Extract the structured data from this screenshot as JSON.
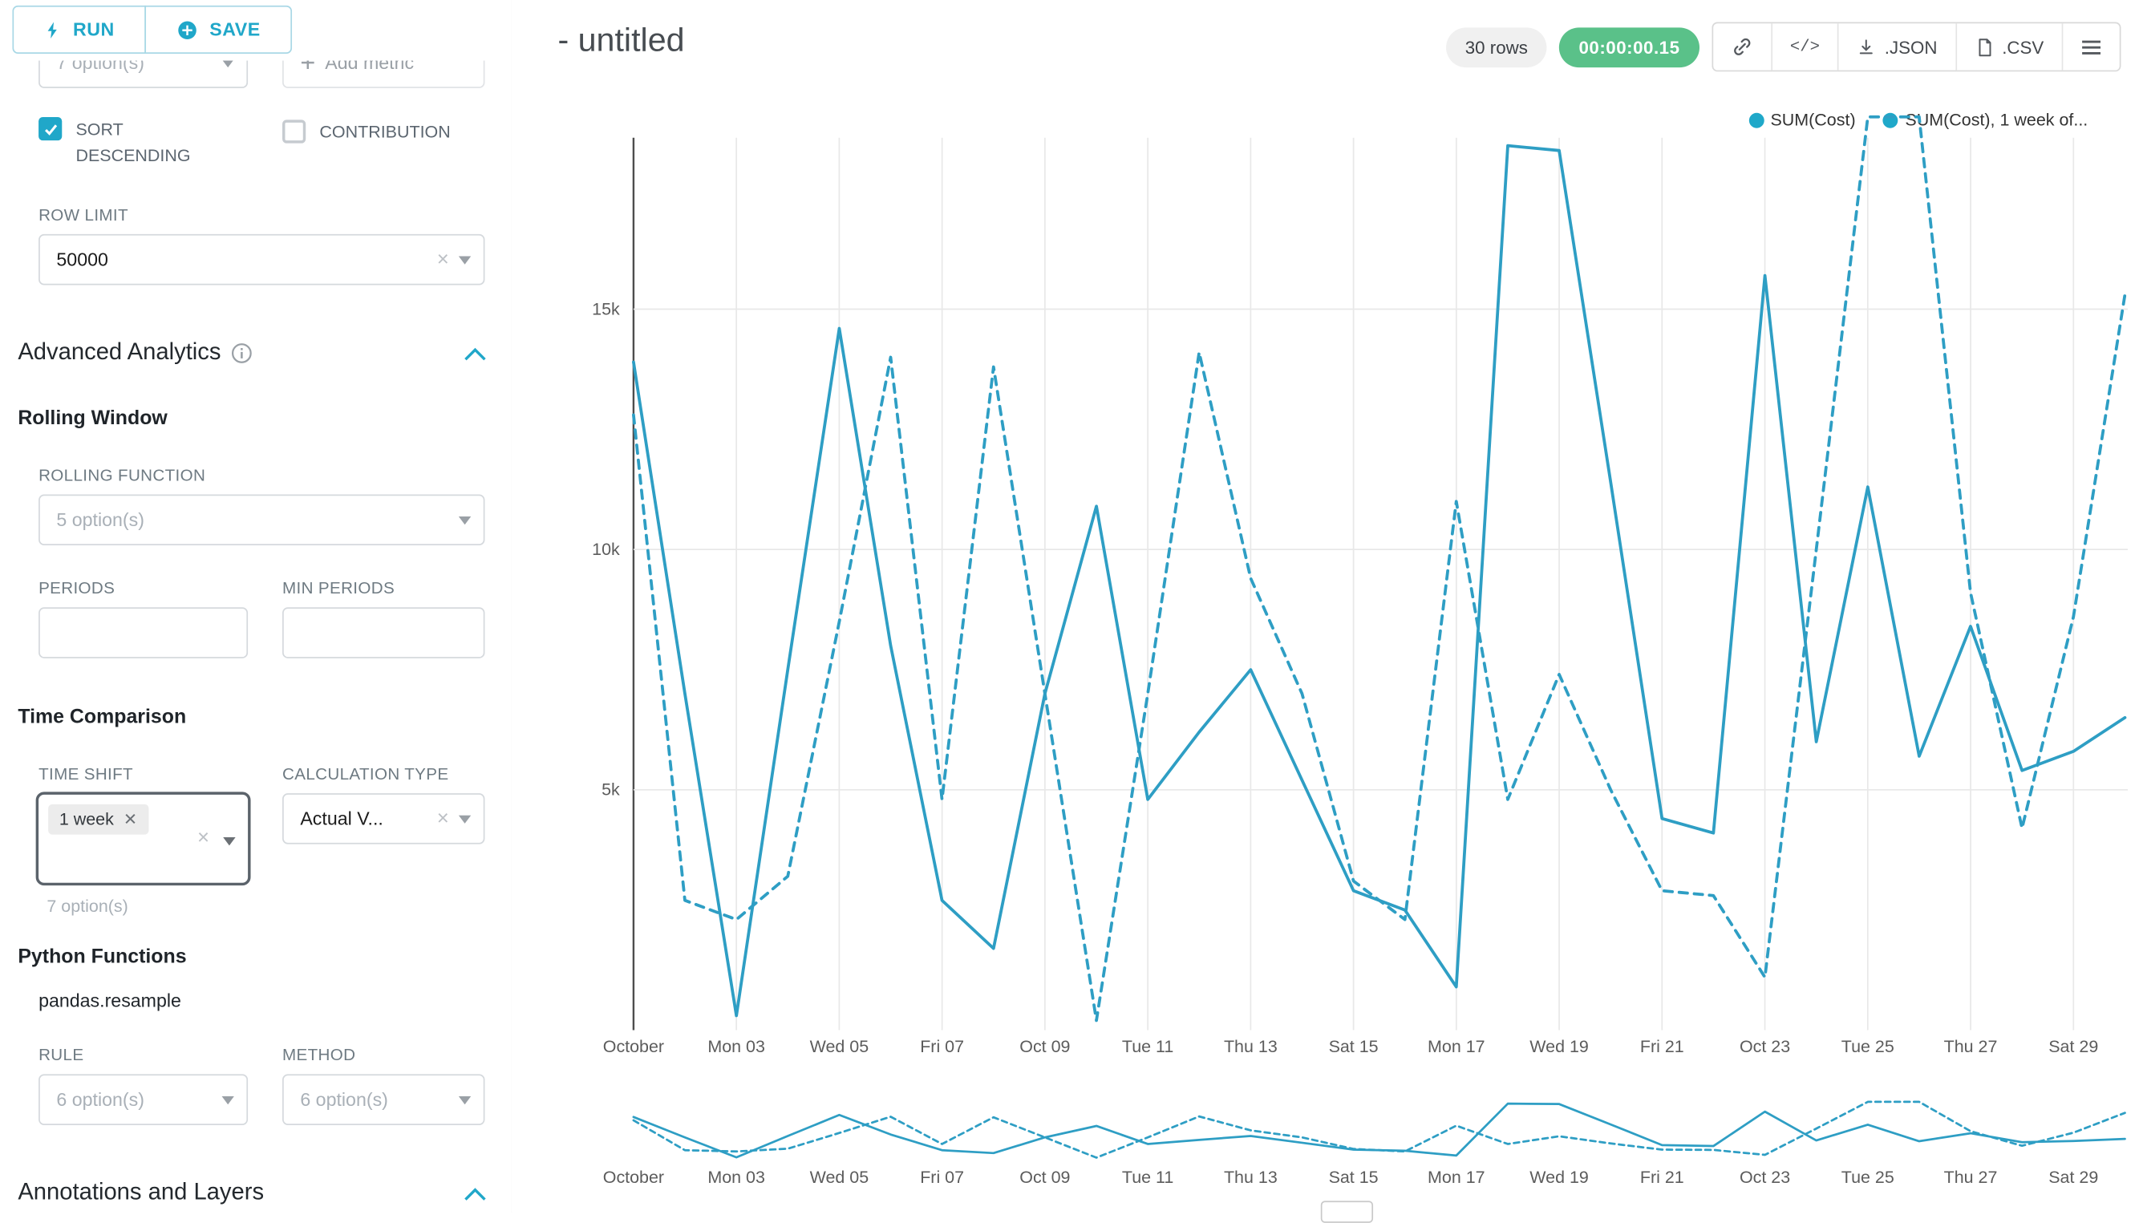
{
  "sidebar": {
    "run_button": "RUN",
    "save_button": "SAVE",
    "series_limit_placeholder": "7 option(s)",
    "add_metric": "Add metric",
    "sort_descending": "SORT DESCENDING",
    "contribution": "CONTRIBUTION",
    "row_limit_label": "ROW LIMIT",
    "row_limit_value": "50000",
    "advanced_analytics_title": "Advanced Analytics",
    "rolling_window_title": "Rolling Window",
    "rolling_function_label": "ROLLING FUNCTION",
    "rolling_function_placeholder": "5 option(s)",
    "periods_label": "PERIODS",
    "min_periods_label": "MIN PERIODS",
    "time_comparison_title": "Time Comparison",
    "time_shift_label": "TIME SHIFT",
    "time_shift_tag": "1 week",
    "time_shift_hint": "7 option(s)",
    "calculation_type_label": "CALCULATION TYPE",
    "calculation_type_value": "Actual V...",
    "python_functions_title": "Python Functions",
    "python_functions_subtitle": "pandas.resample",
    "rule_label": "RULE",
    "rule_placeholder": "6 option(s)",
    "method_label": "METHOD",
    "method_placeholder": "6 option(s)",
    "annotations_title": "Annotations and Layers"
  },
  "header": {
    "title": "- untitled",
    "rows_badge": "30 rows",
    "timer_badge": "00:00:00.15",
    "json_button": ".JSON",
    "csv_button": ".CSV"
  },
  "colors": {
    "accent": "#20A7C9",
    "timer_green": "#5AC189",
    "line": "#2E9EC4",
    "legend_dot": "#1FA8C9"
  },
  "chart_data": {
    "type": "line",
    "title": "- untitled",
    "x": [
      "Oct 01",
      "Oct 02",
      "Oct 03",
      "Oct 04",
      "Oct 05",
      "Oct 06",
      "Oct 07",
      "Oct 08",
      "Oct 09",
      "Oct 10",
      "Oct 11",
      "Oct 12",
      "Oct 13",
      "Oct 14",
      "Oct 15",
      "Oct 16",
      "Oct 17",
      "Oct 18",
      "Oct 19",
      "Oct 20",
      "Oct 21",
      "Oct 22",
      "Oct 23",
      "Oct 24",
      "Oct 25",
      "Oct 26",
      "Oct 27",
      "Oct 28",
      "Oct 29",
      "Oct 30"
    ],
    "x_tick_labels": [
      "October",
      "Mon 03",
      "Wed 05",
      "Fri 07",
      "Oct 09",
      "Tue 11",
      "Thu 13",
      "Sat 15",
      "Mon 17",
      "Wed 19",
      "Fri 21",
      "Oct 23",
      "Tue 25",
      "Thu 27",
      "Sat 29"
    ],
    "y_ticks": [
      {
        "v": 5000,
        "label": "5k"
      },
      {
        "v": 10000,
        "label": "10k"
      },
      {
        "v": 15000,
        "label": "15k"
      }
    ],
    "ylim": [
      0,
      19400
    ],
    "grid": true,
    "legend_position": "top-right",
    "legend": [
      {
        "label": "SUM(Cost)"
      },
      {
        "label": "SUM(Cost), 1 week of..."
      }
    ],
    "series": [
      {
        "name": "SUM(Cost)",
        "line_style": "solid",
        "values": [
          13900,
          7000,
          300,
          7500,
          14600,
          8000,
          2700,
          1700,
          7000,
          10900,
          4800,
          6200,
          7500,
          5200,
          2900,
          2500,
          900,
          18400,
          18300,
          11400,
          4400,
          4100,
          15700,
          6000,
          11300,
          5700,
          8400,
          5400,
          5800,
          6500
        ]
      },
      {
        "name": "SUM(Cost), 1 week offset",
        "line_style": "dashed",
        "values": [
          12800,
          2700,
          2300,
          3200,
          8500,
          14000,
          4800,
          13800,
          7000,
          200,
          7000,
          14100,
          9400,
          7000,
          3100,
          2300,
          11000,
          4800,
          7400,
          5000,
          2900,
          2800,
          1100,
          10000,
          19000,
          19000,
          9100,
          4200,
          8600,
          15300
        ]
      }
    ]
  }
}
